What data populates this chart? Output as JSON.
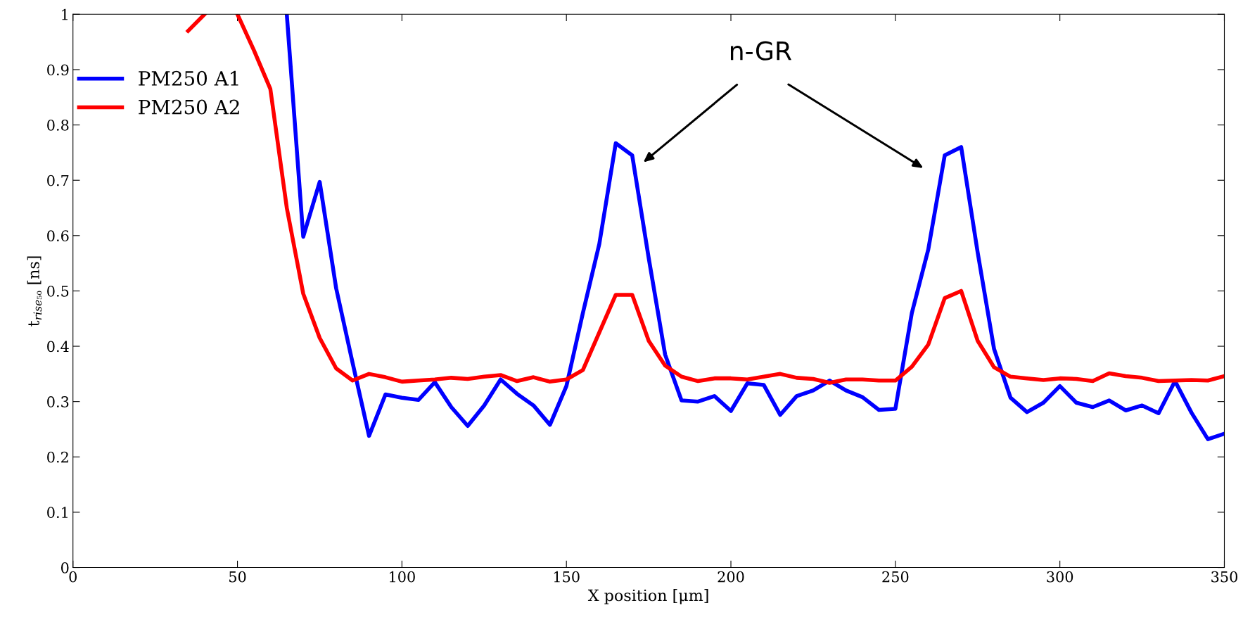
{
  "chart_data": {
    "type": "line",
    "xlabel": "X position [μm]",
    "ylabel": "t$_{rise₅₀}$ [ns]",
    "x": [
      35,
      40,
      45,
      50,
      55,
      60,
      65,
      70,
      75,
      80,
      85,
      90,
      95,
      100,
      105,
      110,
      115,
      120,
      125,
      130,
      135,
      140,
      145,
      150,
      155,
      160,
      165,
      170,
      175,
      180,
      185,
      190,
      195,
      200,
      205,
      210,
      215,
      220,
      225,
      230,
      235,
      240,
      245,
      250,
      255,
      260,
      265,
      270,
      275,
      280,
      285,
      290,
      295,
      300,
      305,
      310,
      315,
      320,
      325,
      330,
      335,
      340,
      345,
      350
    ],
    "series": [
      {
        "name": "PM250 A1",
        "color": "#0000ff",
        "values": [
          null,
          null,
          null,
          null,
          null,
          null,
          1.0,
          0.598,
          0.697,
          0.505,
          0.37,
          0.238,
          0.313,
          0.307,
          0.303,
          0.335,
          0.29,
          0.256,
          0.293,
          0.34,
          0.314,
          0.293,
          0.258,
          0.328,
          0.46,
          0.585,
          0.767,
          0.745,
          0.56,
          0.385,
          0.302,
          0.3,
          0.31,
          0.283,
          0.333,
          0.33,
          0.276,
          0.31,
          0.32,
          0.338,
          0.32,
          0.308,
          0.285,
          0.287,
          0.46,
          0.575,
          0.745,
          0.76,
          0.57,
          0.395,
          0.307,
          0.281,
          0.298,
          0.328,
          0.298,
          0.29,
          0.302,
          0.284,
          0.293,
          0.279,
          0.337,
          0.28,
          0.232,
          0.242
        ]
      },
      {
        "name": "PM250 A2",
        "color": "#ff0000",
        "values": [
          0.97,
          1.0,
          null,
          1.0,
          0.935,
          0.865,
          0.65,
          0.495,
          0.415,
          0.36,
          0.338,
          0.35,
          0.344,
          0.336,
          0.338,
          0.34,
          0.343,
          0.341,
          0.345,
          0.348,
          0.337,
          0.344,
          0.336,
          0.34,
          0.357,
          0.425,
          0.493,
          0.493,
          0.41,
          0.365,
          0.345,
          0.337,
          0.342,
          0.342,
          0.34,
          0.345,
          0.35,
          0.343,
          0.341,
          0.334,
          0.34,
          0.34,
          0.338,
          0.338,
          0.363,
          0.403,
          0.487,
          0.5,
          0.41,
          0.362,
          0.345,
          0.342,
          0.339,
          0.342,
          0.341,
          0.337,
          0.351,
          0.346,
          0.343,
          0.337,
          0.338,
          0.339,
          0.338,
          0.346
        ]
      }
    ],
    "xlim": [
      0,
      350
    ],
    "xticks": [
      0,
      50,
      100,
      150,
      200,
      250,
      300,
      350
    ],
    "ylim": [
      0,
      1
    ],
    "yticks": [
      0,
      0.1,
      0.2,
      0.3,
      0.4,
      0.5,
      0.6,
      0.7,
      0.8,
      0.9,
      1
    ],
    "annotations": [
      "n-GR"
    ],
    "legend": "top left",
    "grid": false,
    "marker": "none",
    "line_style": "solid"
  }
}
